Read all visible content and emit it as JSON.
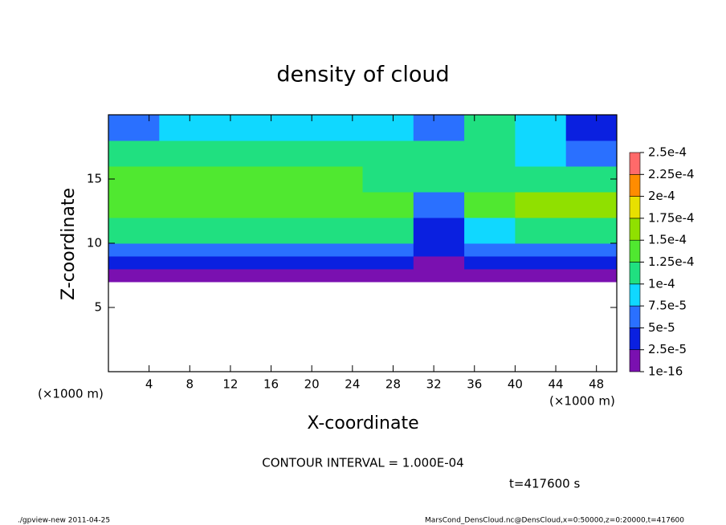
{
  "chart_data": {
    "type": "heatmap",
    "title": "density of cloud",
    "xlabel": "X-coordinate",
    "ylabel": "Z-coordinate",
    "x_unit_left": "(×1000 m)",
    "x_unit_right": "(×1000 m)",
    "contour_note": "CONTOUR INTERVAL = 1.000E-04",
    "time_note": "t=417600 s",
    "footer_left": "./gpview-new  2011-04-25",
    "footer_right": "MarsCond_DensCloud.nc@DensCloud,x=0:50000,z=0:20000,t=417600",
    "xlim": [
      0,
      50
    ],
    "ylim": [
      0,
      20
    ],
    "xticks": [
      4,
      8,
      12,
      16,
      20,
      24,
      28,
      32,
      36,
      40,
      44,
      48
    ],
    "yticks": [
      5,
      10,
      15
    ],
    "xbins": [
      0,
      5,
      10,
      15,
      20,
      25,
      30,
      35,
      40,
      45,
      50
    ],
    "ybins": [
      7,
      8,
      9,
      10,
      12,
      14,
      16,
      18,
      20
    ],
    "values": [
      [
        1.2e-05,
        1.2e-05,
        1.2e-05,
        1.2e-05,
        1.2e-05,
        1.2e-05,
        2e-05,
        1.2e-05,
        1.2e-05,
        1.2e-05
      ],
      [
        4e-05,
        4e-05,
        4e-05,
        4e-05,
        4e-05,
        4e-05,
        2e-05,
        4e-05,
        4e-05,
        4e-05
      ],
      [
        7e-05,
        7e-05,
        7e-05,
        7e-05,
        7e-05,
        7e-05,
        3e-05,
        7e-05,
        7e-05,
        7e-05
      ],
      [
        0.00012,
        0.00012,
        0.00012,
        0.00012,
        0.00012,
        0.00012,
        3e-05,
        9e-05,
        0.00012,
        0.00012
      ],
      [
        0.00013,
        0.00013,
        0.00013,
        0.00013,
        0.00013,
        0.00013,
        6e-05,
        0.00014,
        0.00016,
        0.00015
      ],
      [
        0.00013,
        0.00013,
        0.00013,
        0.00013,
        0.00013,
        0.00012,
        0.00011,
        0.00012,
        0.00012,
        0.00011
      ],
      [
        0.00012,
        0.00012,
        0.00012,
        0.00012,
        0.00012,
        0.00012,
        0.00012,
        0.00012,
        9e-05,
        5e-05
      ],
      [
        5e-05,
        8e-05,
        8e-05,
        8e-05,
        8e-05,
        8e-05,
        7e-05,
        0.0001,
        8e-05,
        3e-05
      ]
    ],
    "levels": [
      {
        "value": 1e-16,
        "label": "1e-16"
      },
      {
        "value": 2.5e-05,
        "label": "2.5e-5"
      },
      {
        "value": 5e-05,
        "label": "5e-5"
      },
      {
        "value": 7.5e-05,
        "label": "7.5e-5"
      },
      {
        "value": 0.0001,
        "label": "1e-4"
      },
      {
        "value": 0.000125,
        "label": "1.25e-4"
      },
      {
        "value": 0.00015,
        "label": "1.5e-4"
      },
      {
        "value": 0.000175,
        "label": "1.75e-4"
      },
      {
        "value": 0.0002,
        "label": "2e-4"
      },
      {
        "value": 0.000225,
        "label": "2.25e-4"
      },
      {
        "value": 0.00025,
        "label": "2.5e-4"
      }
    ],
    "colors": [
      "#7a10b0",
      "#0a20e0",
      "#2a70ff",
      "#10d8ff",
      "#20e080",
      "#50e830",
      "#90e000",
      "#e8e000",
      "#ff8c00",
      "#ff6a6a"
    ]
  }
}
